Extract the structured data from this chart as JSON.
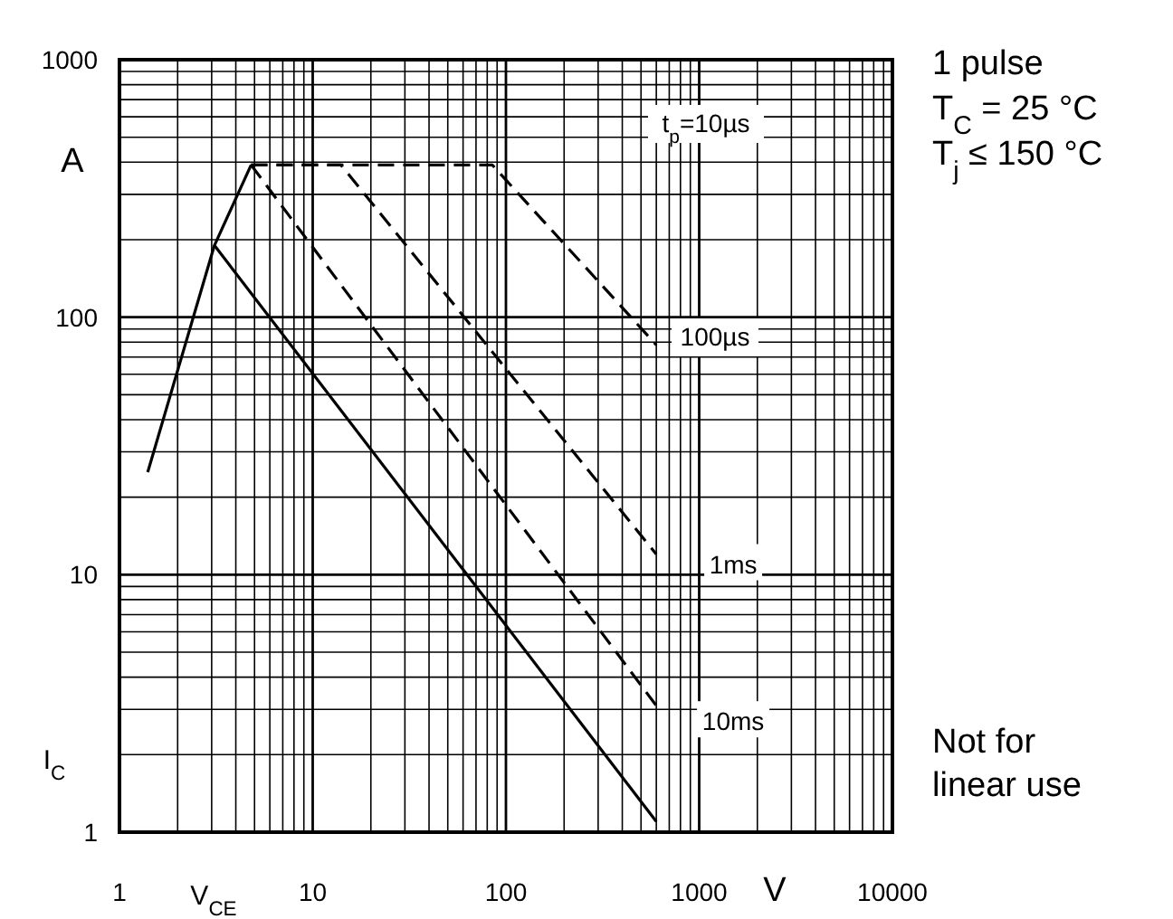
{
  "chart_data": {
    "type": "line",
    "xlabel": "V$_{CE}$",
    "ylabel": "I$_{C}$",
    "log": "xy",
    "grid": true,
    "xlim": [
      1,
      10000
    ],
    "ylim": [
      1,
      1000
    ],
    "xticks": [
      1,
      10,
      100,
      1000,
      10000
    ],
    "yticks": [
      1,
      10,
      100,
      1000
    ],
    "series": [
      {
        "color": "#000000",
        "line_style": "solid",
        "x": [
          1.4,
          3.1,
          4.8
        ],
        "values": [
          25,
          190,
          390
        ]
      },
      {
        "color": "#000000",
        "line_style": "dashed",
        "x": [
          4.8,
          85,
          600
        ],
        "values": [
          390,
          390,
          78
        ]
      },
      {
        "color": "#000000",
        "line_style": "dashed",
        "x": [
          4.8,
          14,
          600
        ],
        "values": [
          390,
          390,
          12
        ]
      },
      {
        "color": "#000000",
        "line_style": "dashed",
        "x": [
          4.8,
          600
        ],
        "values": [
          390,
          3.1
        ]
      },
      {
        "color": "#000000",
        "line_style": "solid",
        "x": [
          3.1,
          600
        ],
        "values": [
          190,
          1.1
        ]
      }
    ],
    "annotations": [
      "t$_{p}$=10µs",
      "100µs",
      {
        "text": "1ms",
        "x": 1500,
        "y": 11
      },
      {
        "text": "10ms",
        "x": 1500,
        "y": 2.7
      },
      "A",
      "V",
      "1 pulse",
      "T$_{C}$ = 25 °C",
      "T$_{j}$ ≤ 150 °C",
      "Not for linear use"
    ]
  }
}
